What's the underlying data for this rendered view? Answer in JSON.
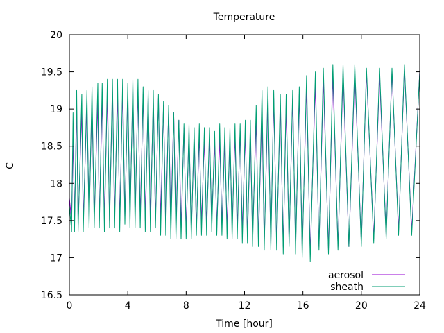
{
  "chart_data": {
    "type": "line",
    "title": "Temperature",
    "xlabel": "Time [hour]",
    "ylabel": "C",
    "xlim": [
      0,
      24
    ],
    "ylim": [
      16.5,
      20
    ],
    "xticks": [
      0,
      4,
      8,
      12,
      16,
      20,
      24
    ],
    "yticks": [
      16.5,
      17,
      17.5,
      18,
      18.5,
      19,
      19.5,
      20
    ],
    "ytick_labels": [
      "16.5",
      "17",
      "17.5",
      "18",
      "18.5",
      "19",
      "19.5",
      "20"
    ],
    "grid": false,
    "legend_position": "bottom-right",
    "series": [
      {
        "name": "aerosol",
        "color": "#9400d3",
        "x": [
          0,
          0.15,
          0.25,
          0.35,
          0.5,
          0.6,
          0.85,
          0.95,
          1.2,
          1.35,
          1.55,
          1.7,
          1.95,
          2.05,
          2.25,
          2.4,
          2.6,
          2.75,
          2.95,
          3.1,
          3.3,
          3.45,
          3.65,
          3.8,
          4.0,
          4.15,
          4.35,
          4.5,
          4.7,
          4.85,
          5.05,
          5.2,
          5.4,
          5.55,
          5.75,
          5.9,
          6.1,
          6.25,
          6.45,
          6.6,
          6.8,
          6.95,
          7.15,
          7.3,
          7.5,
          7.65,
          7.85,
          8.0,
          8.2,
          8.35,
          8.55,
          8.7,
          8.9,
          9.05,
          9.25,
          9.4,
          9.6,
          9.75,
          9.95,
          10.1,
          10.3,
          10.45,
          10.65,
          10.8,
          11.0,
          11.15,
          11.35,
          11.5,
          11.7,
          11.85,
          12.05,
          12.2,
          12.4,
          12.55,
          12.8,
          12.95,
          13.2,
          13.35,
          13.6,
          13.8,
          14.0,
          14.2,
          14.45,
          14.65,
          14.85,
          15.05,
          15.3,
          15.5,
          15.75,
          15.95,
          16.25,
          16.5,
          16.85,
          17.1,
          17.4,
          17.75,
          18.05,
          18.4,
          18.75,
          19.15,
          19.55,
          20.0,
          20.35,
          20.85,
          21.25,
          21.7,
          22.1,
          22.55,
          22.95,
          23.45,
          24.0
        ],
        "values": [
          17.8,
          17.5,
          18.6,
          17.5,
          19.05,
          17.45,
          19.0,
          17.5,
          19.05,
          17.55,
          19.1,
          17.55,
          19.1,
          17.5,
          19.15,
          17.5,
          19.2,
          17.5,
          19.25,
          17.55,
          19.2,
          17.5,
          19.25,
          17.55,
          19.2,
          17.55,
          19.25,
          17.55,
          19.25,
          17.55,
          19.2,
          17.5,
          19.15,
          17.55,
          19.1,
          17.5,
          19.15,
          17.5,
          19.05,
          17.5,
          19.0,
          17.45,
          18.95,
          17.4,
          18.85,
          17.4,
          18.75,
          17.35,
          18.7,
          17.35,
          18.6,
          17.4,
          18.65,
          17.45,
          18.6,
          17.45,
          18.6,
          17.5,
          18.55,
          17.4,
          18.6,
          17.45,
          18.55,
          17.4,
          18.6,
          17.4,
          18.65,
          17.4,
          18.7,
          17.35,
          18.7,
          17.3,
          18.65,
          17.3,
          18.85,
          17.25,
          19.0,
          17.2,
          19.1,
          17.2,
          19.15,
          17.2,
          19.05,
          17.15,
          19.05,
          17.2,
          19.15,
          17.15,
          19.2,
          17.1,
          19.3,
          17.05,
          19.35,
          17.15,
          19.4,
          17.1,
          19.45,
          17.15,
          19.5,
          17.15,
          19.5,
          17.2,
          19.5,
          17.25,
          19.45,
          17.3,
          19.5,
          17.35,
          19.55,
          17.35,
          19.5
        ]
      },
      {
        "name": "sheath",
        "color": "#009e73",
        "x": [
          0,
          0.15,
          0.25,
          0.35,
          0.5,
          0.6,
          0.85,
          0.95,
          1.2,
          1.35,
          1.55,
          1.7,
          1.95,
          2.05,
          2.25,
          2.4,
          2.6,
          2.75,
          2.95,
          3.1,
          3.3,
          3.45,
          3.65,
          3.8,
          4.0,
          4.15,
          4.35,
          4.5,
          4.7,
          4.85,
          5.05,
          5.2,
          5.4,
          5.55,
          5.75,
          5.9,
          6.1,
          6.25,
          6.45,
          6.6,
          6.8,
          6.95,
          7.15,
          7.3,
          7.5,
          7.65,
          7.85,
          8.0,
          8.2,
          8.35,
          8.55,
          8.7,
          8.9,
          9.05,
          9.25,
          9.4,
          9.6,
          9.75,
          9.95,
          10.1,
          10.3,
          10.45,
          10.65,
          10.8,
          11.0,
          11.15,
          11.35,
          11.5,
          11.7,
          11.85,
          12.05,
          12.2,
          12.4,
          12.55,
          12.8,
          12.95,
          13.2,
          13.35,
          13.6,
          13.8,
          14.0,
          14.2,
          14.45,
          14.65,
          14.85,
          15.05,
          15.3,
          15.5,
          15.75,
          15.95,
          16.25,
          16.5,
          16.85,
          17.1,
          17.4,
          17.75,
          18.05,
          18.4,
          18.75,
          19.15,
          19.55,
          20.0,
          20.35,
          20.85,
          21.25,
          21.7,
          22.1,
          22.55,
          22.95,
          23.45,
          24.0
        ],
        "values": [
          17.7,
          17.35,
          18.95,
          17.35,
          19.25,
          17.35,
          19.2,
          17.35,
          19.25,
          17.4,
          19.3,
          17.4,
          19.35,
          17.4,
          19.35,
          17.35,
          19.4,
          17.4,
          19.4,
          17.4,
          19.4,
          17.35,
          19.4,
          17.45,
          19.35,
          17.4,
          19.4,
          17.4,
          19.4,
          17.4,
          19.3,
          17.35,
          19.25,
          17.35,
          19.25,
          17.4,
          19.2,
          17.3,
          19.1,
          17.3,
          19.05,
          17.25,
          18.95,
          17.25,
          18.85,
          17.25,
          18.8,
          17.25,
          18.8,
          17.25,
          18.75,
          17.3,
          18.8,
          17.3,
          18.75,
          17.3,
          18.75,
          17.35,
          18.7,
          17.3,
          18.8,
          17.3,
          18.75,
          17.25,
          18.75,
          17.25,
          18.8,
          17.25,
          18.8,
          17.2,
          18.85,
          17.2,
          18.85,
          17.15,
          19.05,
          17.15,
          19.25,
          17.1,
          19.3,
          17.1,
          19.25,
          17.1,
          19.2,
          17.05,
          19.2,
          17.15,
          19.25,
          17.05,
          19.3,
          17.0,
          19.45,
          16.95,
          19.5,
          17.1,
          19.55,
          17.05,
          19.6,
          17.1,
          19.6,
          17.15,
          19.6,
          17.15,
          19.55,
          17.2,
          19.55,
          17.25,
          19.55,
          17.3,
          19.6,
          17.3,
          19.5
        ]
      }
    ]
  }
}
